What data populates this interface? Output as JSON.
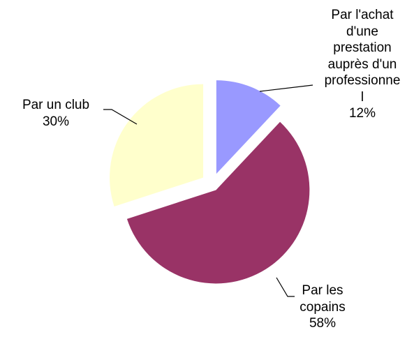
{
  "chart_data": {
    "type": "pie",
    "categories": [
      "Par l'achat\nd'une\nprestation\nauprès d'un\nprofessionne\nl",
      "Par les\ncopains",
      "Par un club"
    ],
    "values": [
      12,
      58,
      30
    ],
    "value_labels": [
      "12%",
      "58%",
      "30%"
    ],
    "colors": [
      "#9999ff",
      "#993366",
      "#ffffcc"
    ]
  }
}
